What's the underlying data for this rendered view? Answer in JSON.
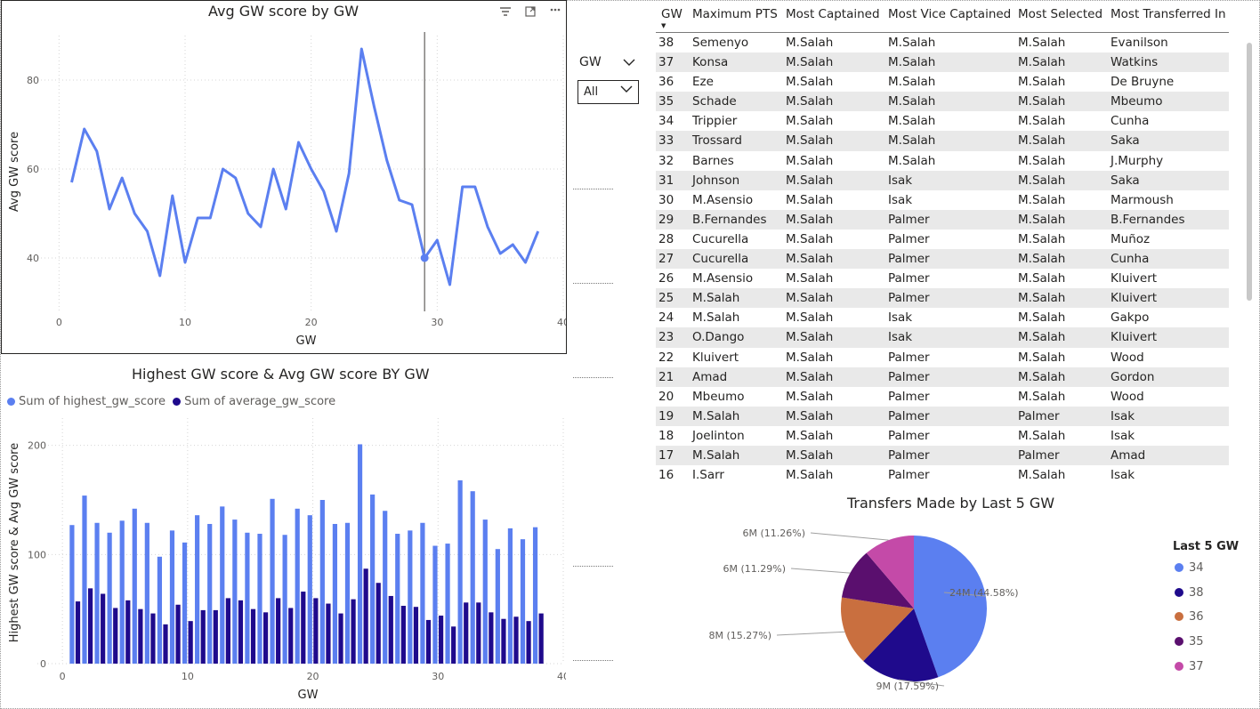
{
  "line_chart": {
    "title": "Avg GW score by GW",
    "xlabel": "GW",
    "ylabel": "Avg GW score",
    "color": "#5b7ff0",
    "chart_data": {
      "type": "line",
      "x": [
        1,
        2,
        3,
        4,
        5,
        6,
        7,
        8,
        9,
        10,
        11,
        12,
        13,
        14,
        15,
        16,
        17,
        18,
        19,
        20,
        21,
        22,
        23,
        24,
        25,
        26,
        27,
        28,
        29,
        30,
        31,
        32,
        33,
        34,
        35,
        36,
        37,
        38
      ],
      "values": [
        57,
        69,
        64,
        51,
        58,
        50,
        46,
        36,
        54,
        39,
        49,
        49,
        60,
        58,
        50,
        47,
        60,
        51,
        66,
        60,
        55,
        46,
        59,
        87,
        74,
        62,
        53,
        52,
        40,
        44,
        34,
        56,
        56,
        47,
        41,
        43,
        39,
        46
      ],
      "xlim": [
        -2,
        40
      ],
      "ylim": [
        28,
        90
      ],
      "xticks": [
        0,
        10,
        20,
        30,
        40
      ],
      "yticks": [
        40,
        60,
        80
      ],
      "highlight_x": 29,
      "grid": true
    }
  },
  "header_icons": [
    "filter-icon",
    "focus-mode-icon",
    "more-options-icon"
  ],
  "bar_chart": {
    "title": "Highest GW score & Avg GW score BY GW",
    "xlabel": "GW",
    "ylabel": "Highest GW score & Avg GW score",
    "legend": [
      {
        "name": "Sum of highest_gw_score",
        "color": "#5b7ff0"
      },
      {
        "name": "Sum of average_gw_score",
        "color": "#1f0a8c"
      }
    ],
    "chart_data": {
      "type": "bar",
      "x": [
        1,
        2,
        3,
        4,
        5,
        6,
        7,
        8,
        9,
        10,
        11,
        12,
        13,
        14,
        15,
        16,
        17,
        18,
        19,
        20,
        21,
        22,
        23,
        24,
        25,
        26,
        27,
        28,
        29,
        30,
        31,
        32,
        33,
        34,
        35,
        36,
        37,
        38
      ],
      "series": [
        {
          "name": "Sum of highest_gw_score",
          "values": [
            127,
            154,
            129,
            120,
            131,
            142,
            129,
            98,
            122,
            111,
            136,
            128,
            144,
            132,
            120,
            119,
            151,
            118,
            142,
            136,
            150,
            128,
            129,
            201,
            155,
            140,
            119,
            122,
            129,
            108,
            110,
            168,
            158,
            132,
            105,
            124,
            114,
            125
          ]
        },
        {
          "name": "Sum of average_gw_score",
          "values": [
            57,
            69,
            64,
            51,
            58,
            50,
            46,
            36,
            54,
            39,
            49,
            49,
            60,
            58,
            50,
            47,
            60,
            51,
            66,
            60,
            55,
            46,
            59,
            87,
            74,
            62,
            53,
            52,
            40,
            44,
            34,
            56,
            56,
            47,
            41,
            43,
            39,
            46
          ]
        }
      ],
      "xlim": [
        -2,
        40
      ],
      "ylim": [
        0,
        225
      ],
      "xticks": [
        0,
        10,
        20,
        30,
        40
      ],
      "yticks": [
        0,
        100,
        200
      ],
      "grid": true
    }
  },
  "slicer": {
    "title": "GW",
    "value": "All"
  },
  "table": {
    "columns": [
      "GW",
      "Maximum PTS",
      "Most Captained",
      "Most Vice Captained",
      "Most Selected",
      "Most Transferred In"
    ],
    "rows": [
      [
        "38",
        "Semenyo",
        "M.Salah",
        "M.Salah",
        "M.Salah",
        "Evanilson"
      ],
      [
        "37",
        "Konsa",
        "M.Salah",
        "M.Salah",
        "M.Salah",
        "Watkins"
      ],
      [
        "36",
        "Eze",
        "M.Salah",
        "M.Salah",
        "M.Salah",
        "De Bruyne"
      ],
      [
        "35",
        "Schade",
        "M.Salah",
        "M.Salah",
        "M.Salah",
        "Mbeumo"
      ],
      [
        "34",
        "Trippier",
        "M.Salah",
        "M.Salah",
        "M.Salah",
        "Cunha"
      ],
      [
        "33",
        "Trossard",
        "M.Salah",
        "M.Salah",
        "M.Salah",
        "Saka"
      ],
      [
        "32",
        "Barnes",
        "M.Salah",
        "M.Salah",
        "M.Salah",
        "J.Murphy"
      ],
      [
        "31",
        "Johnson",
        "M.Salah",
        "Isak",
        "M.Salah",
        "Saka"
      ],
      [
        "30",
        "M.Asensio",
        "M.Salah",
        "Isak",
        "M.Salah",
        "Marmoush"
      ],
      [
        "29",
        "B.Fernandes",
        "M.Salah",
        "Palmer",
        "M.Salah",
        "B.Fernandes"
      ],
      [
        "28",
        "Cucurella",
        "M.Salah",
        "Palmer",
        "M.Salah",
        "Muñoz"
      ],
      [
        "27",
        "Cucurella",
        "M.Salah",
        "Palmer",
        "M.Salah",
        "Cunha"
      ],
      [
        "26",
        "M.Asensio",
        "M.Salah",
        "Palmer",
        "M.Salah",
        "Kluivert"
      ],
      [
        "25",
        "M.Salah",
        "M.Salah",
        "Palmer",
        "M.Salah",
        "Kluivert"
      ],
      [
        "24",
        "M.Salah",
        "M.Salah",
        "Isak",
        "M.Salah",
        "Gakpo"
      ],
      [
        "23",
        "O.Dango",
        "M.Salah",
        "Isak",
        "M.Salah",
        "Kluivert"
      ],
      [
        "22",
        "Kluivert",
        "M.Salah",
        "Palmer",
        "M.Salah",
        "Wood"
      ],
      [
        "21",
        "Amad",
        "M.Salah",
        "Palmer",
        "M.Salah",
        "Gordon"
      ],
      [
        "20",
        "Mbeumo",
        "M.Salah",
        "Palmer",
        "M.Salah",
        "Wood"
      ],
      [
        "19",
        "M.Salah",
        "M.Salah",
        "Palmer",
        "Palmer",
        "Isak"
      ],
      [
        "18",
        "Joelinton",
        "M.Salah",
        "Palmer",
        "M.Salah",
        "Isak"
      ],
      [
        "17",
        "M.Salah",
        "M.Salah",
        "Palmer",
        "Palmer",
        "Amad"
      ],
      [
        "16",
        "I.Sarr",
        "M.Salah",
        "Palmer",
        "M.Salah",
        "Isak"
      ]
    ]
  },
  "pie_chart": {
    "title": "Transfers Made by Last 5 GW",
    "legend_title": "Last 5 GW",
    "chart_data": {
      "type": "pie",
      "slices": [
        {
          "label": "34",
          "value": 44.58,
          "text": "24M (44.58%)",
          "color": "#5b7ff0"
        },
        {
          "label": "38",
          "value": 17.59,
          "text": "9M (17.59%)",
          "color": "#1f0a8c"
        },
        {
          "label": "36",
          "value": 15.27,
          "text": "8M (15.27%)",
          "color": "#c96f3f"
        },
        {
          "label": "35",
          "value": 11.29,
          "text": "6M (11.29%)",
          "color": "#5a0f6e"
        },
        {
          "label": "37",
          "value": 11.26,
          "text": "6M (11.26%)",
          "color": "#c44aa8"
        }
      ]
    }
  }
}
